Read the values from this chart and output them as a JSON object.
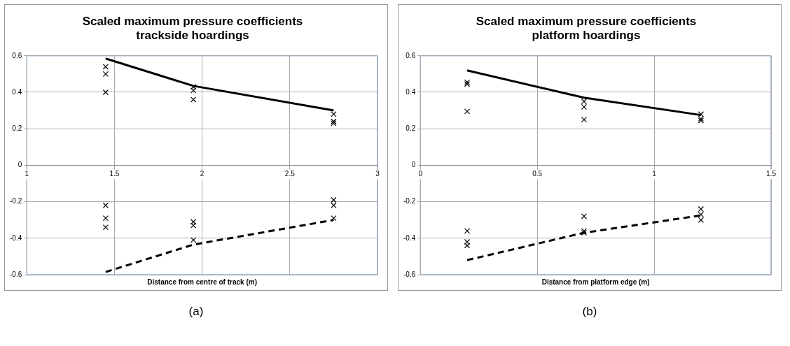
{
  "chart_data": [
    {
      "type": "scatter",
      "title": "Scaled maximum pressure coefficients\ntrackside hoardings",
      "xlabel": "Distance from centre of track (m)",
      "xlim": [
        1,
        3
      ],
      "xticks": [
        1,
        1.5,
        2,
        2.5,
        3
      ],
      "ylim": [
        -0.6,
        0.6
      ],
      "yticks": [
        -0.6,
        -0.4,
        -0.2,
        0,
        0.2,
        0.4,
        0.6
      ],
      "grid": true,
      "legend": false,
      "marker": "cross",
      "annotations": [
        "(a)"
      ],
      "series": [
        {
          "type": "scatter",
          "color": "#000000",
          "x": [
            1.45,
            1.45,
            1.45,
            1.95,
            1.95,
            1.95,
            2.75,
            2.75,
            2.75,
            1.45,
            1.45,
            1.45,
            1.95,
            1.95,
            1.95,
            2.75,
            2.75,
            2.75
          ],
          "values": [
            0.54,
            0.5,
            0.4,
            0.43,
            0.41,
            0.36,
            0.28,
            0.24,
            0.23,
            -0.22,
            -0.29,
            -0.34,
            -0.31,
            -0.33,
            -0.41,
            -0.19,
            -0.22,
            -0.29
          ]
        },
        {
          "type": "line",
          "color": "#000000",
          "line_style": "solid",
          "marker": "none",
          "x": [
            1.45,
            1.95,
            2.75
          ],
          "values": [
            0.585,
            0.435,
            0.3
          ]
        },
        {
          "type": "line",
          "color": "#000000",
          "line_style": "dashed",
          "marker": "none",
          "x": [
            1.45,
            1.95,
            2.75
          ],
          "values": [
            -0.585,
            -0.435,
            -0.3
          ]
        }
      ]
    },
    {
      "type": "scatter",
      "title": "Scaled maximum pressure coefficients\nplatform hoardings",
      "xlabel": "Distance from platform edge (m)",
      "xlim": [
        0,
        1.5
      ],
      "xticks": [
        0,
        0.5,
        1,
        1.5
      ],
      "ylim": [
        -0.6,
        0.6
      ],
      "yticks": [
        -0.6,
        -0.4,
        -0.2,
        0,
        0.2,
        0.4,
        0.6
      ],
      "grid": true,
      "legend": false,
      "marker": "cross",
      "annotations": [
        "(b)"
      ],
      "series": [
        {
          "type": "scatter",
          "color": "#000000",
          "x": [
            0.2,
            0.2,
            0.2,
            0.7,
            0.7,
            0.7,
            1.2,
            1.2,
            1.2,
            0.2,
            0.2,
            0.2,
            0.7,
            0.7,
            0.7,
            1.2,
            1.2,
            1.2
          ],
          "values": [
            0.455,
            0.445,
            0.295,
            0.35,
            0.32,
            0.25,
            0.28,
            0.255,
            0.245,
            -0.36,
            -0.42,
            -0.44,
            -0.28,
            -0.36,
            -0.37,
            -0.24,
            -0.27,
            -0.3
          ]
        },
        {
          "type": "line",
          "color": "#000000",
          "line_style": "solid",
          "marker": "none",
          "x": [
            0.2,
            0.7,
            1.2
          ],
          "values": [
            0.52,
            0.37,
            0.275
          ]
        },
        {
          "type": "line",
          "color": "#000000",
          "line_style": "dashed",
          "marker": "none",
          "x": [
            0.2,
            0.7,
            1.2
          ],
          "values": [
            -0.52,
            -0.37,
            -0.275
          ]
        }
      ]
    }
  ]
}
